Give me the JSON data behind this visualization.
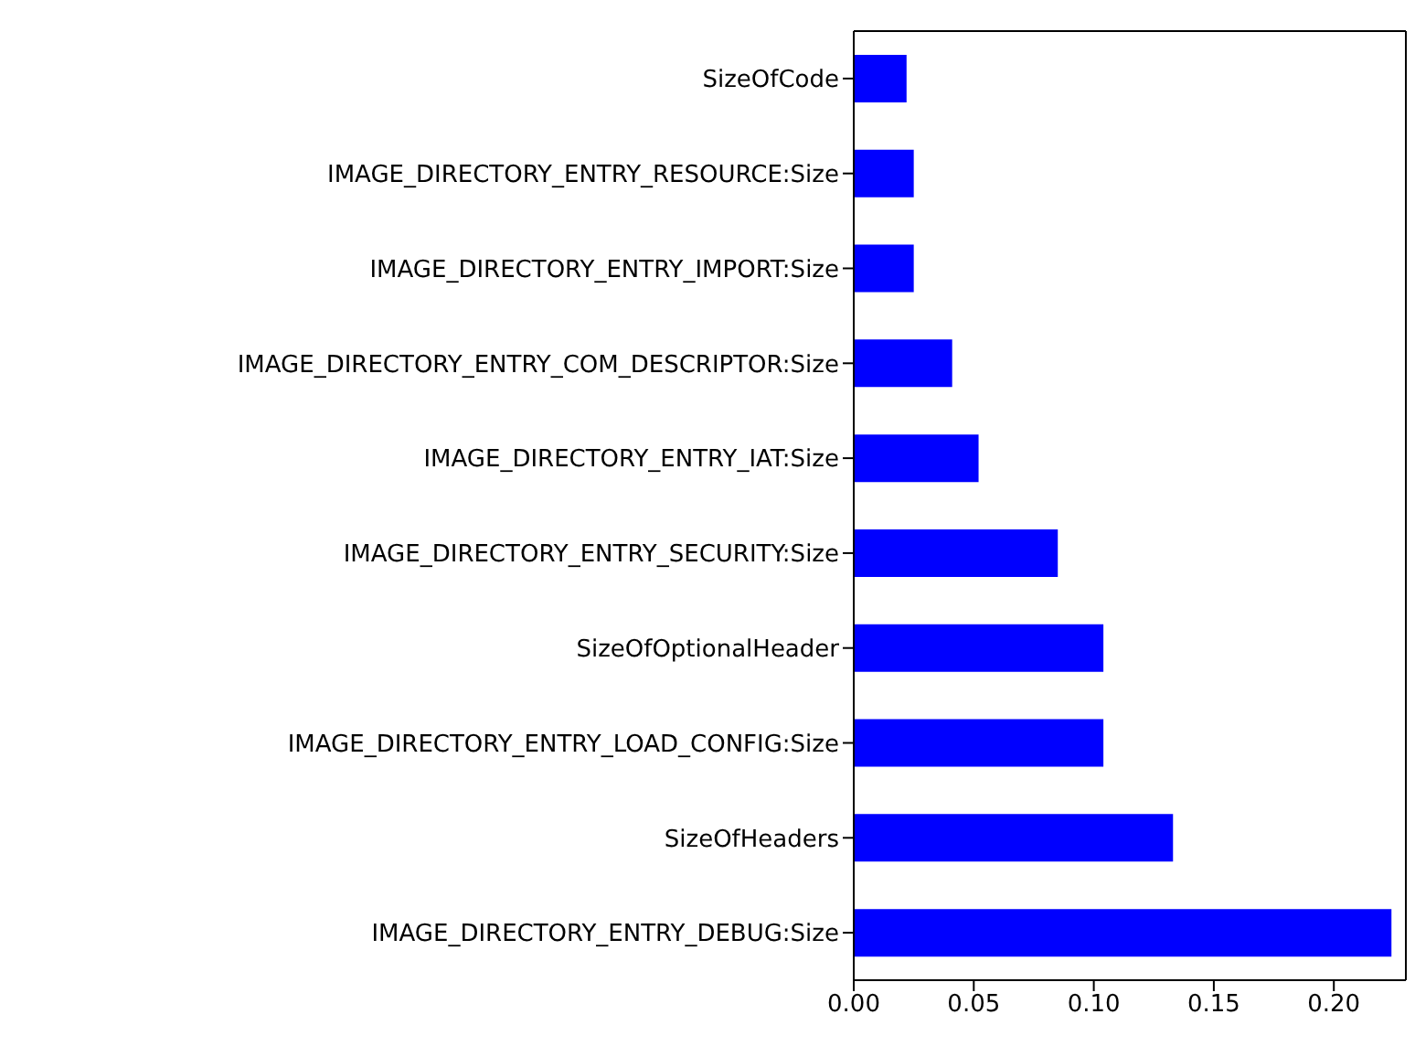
{
  "chart_data": {
    "type": "bar",
    "orientation": "horizontal",
    "categories": [
      "SizeOfCode",
      "IMAGE_DIRECTORY_ENTRY_RESOURCE:Size",
      "IMAGE_DIRECTORY_ENTRY_IMPORT:Size",
      "IMAGE_DIRECTORY_ENTRY_COM_DESCRIPTOR:Size",
      "IMAGE_DIRECTORY_ENTRY_IAT:Size",
      "IMAGE_DIRECTORY_ENTRY_SECURITY:Size",
      "SizeOfOptionalHeader",
      "IMAGE_DIRECTORY_ENTRY_LOAD_CONFIG:Size",
      "SizeOfHeaders",
      "IMAGE_DIRECTORY_ENTRY_DEBUG:Size"
    ],
    "values": [
      0.022,
      0.025,
      0.025,
      0.041,
      0.052,
      0.085,
      0.104,
      0.104,
      0.133,
      0.224
    ],
    "color": "#0000ff",
    "xlim": [
      0,
      0.23
    ],
    "xticks": [
      {
        "value": 0,
        "label": "0.00"
      },
      {
        "value": 0.05,
        "label": "0.05"
      },
      {
        "value": 0.1,
        "label": "0.10"
      },
      {
        "value": 0.15,
        "label": "0.15"
      },
      {
        "value": 0.2,
        "label": "0.20"
      }
    ]
  }
}
